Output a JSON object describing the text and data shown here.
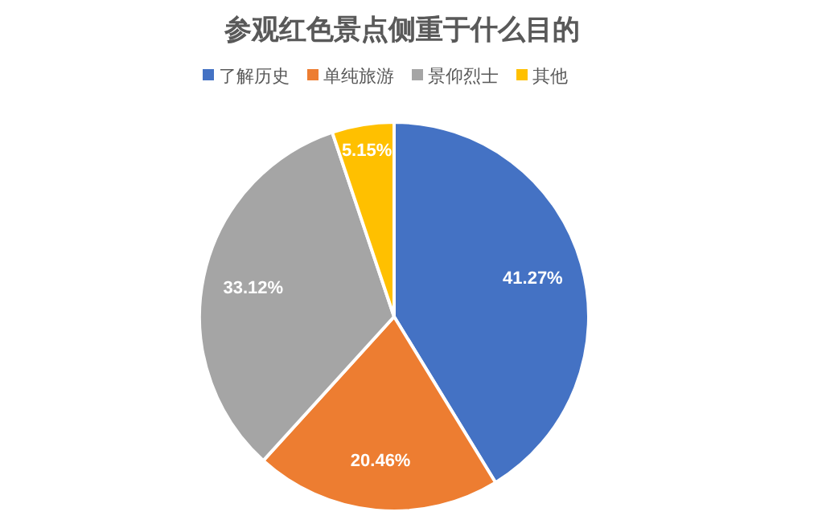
{
  "chart_data": {
    "type": "pie",
    "title": "参观红色景点侧重于什么目的",
    "categories": [
      "了解历史",
      "单纯旅游",
      "景仰烈士",
      "其他"
    ],
    "values": [
      41.27,
      20.46,
      33.12,
      5.15
    ],
    "colors": [
      "#4472c4",
      "#ed7d31",
      "#a5a5a5",
      "#ffc000"
    ],
    "value_labels": [
      "41.27%",
      "20.46%",
      "33.12%",
      "5.15%"
    ],
    "legend": "top"
  }
}
